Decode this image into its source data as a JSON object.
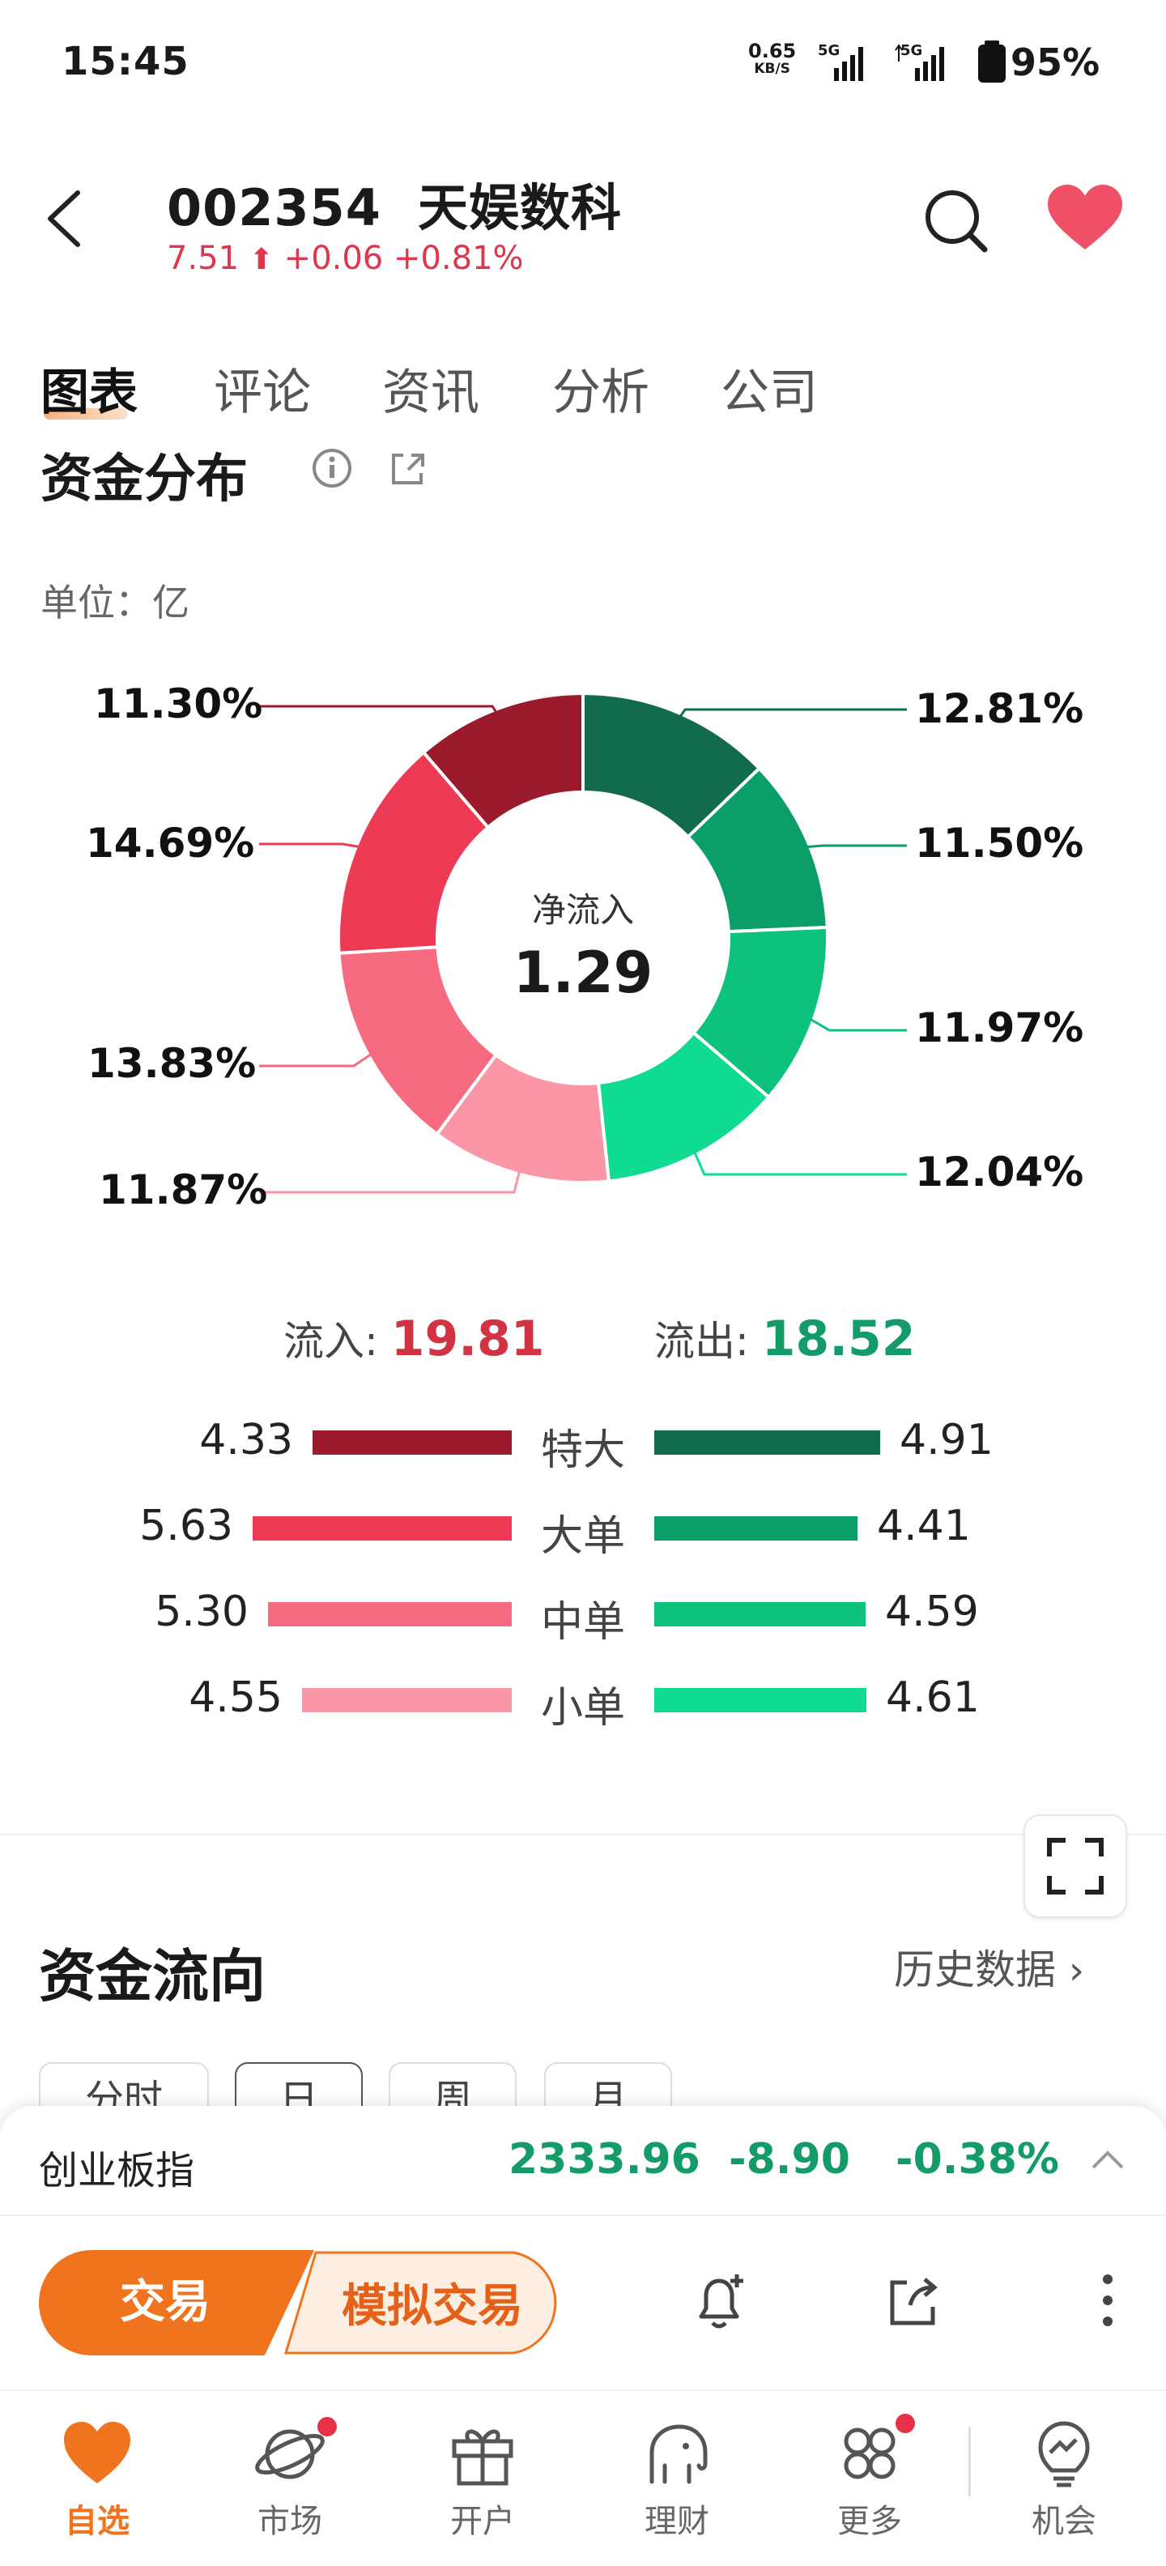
{
  "status_bar": {
    "time": "15:45",
    "net_speed": "0.65",
    "net_unit": "KB/S",
    "sim1": "5G",
    "sim2": "5G",
    "battery": "95%"
  },
  "header": {
    "code": "002354",
    "name": "天娱数科",
    "price": "7.51",
    "change": "+0.06",
    "change_pct": "+0.81%",
    "icons": [
      "back-arrow-icon",
      "search-icon",
      "heart-icon"
    ]
  },
  "tabs": [
    {
      "label": "图表",
      "active": true
    },
    {
      "label": "评论"
    },
    {
      "label": "资讯"
    },
    {
      "label": "分析"
    },
    {
      "label": "公司"
    }
  ],
  "distribution": {
    "title": "资金分布",
    "unit_label": "单位：亿",
    "center_label": "净流入",
    "center_value": "1.29",
    "left_labels": [
      "11.30%",
      "14.69%",
      "13.83%",
      "11.87%"
    ],
    "right_labels": [
      "12.81%",
      "11.50%",
      "11.97%",
      "12.04%"
    ],
    "inflow_label": "流入: ",
    "inflow_value": "19.81",
    "outflow_label": "流出: ",
    "outflow_value": "18.52",
    "rows": [
      {
        "label": "特大",
        "in": "4.33",
        "out": "4.91"
      },
      {
        "label": "大单",
        "in": "5.63",
        "out": "4.41"
      },
      {
        "label": "中单",
        "in": "5.30",
        "out": "4.59"
      },
      {
        "label": "小单",
        "in": "4.55",
        "out": "4.61"
      }
    ],
    "colors": {
      "in": [
        "#9b1b2d",
        "#ee3b55",
        "#f66b80",
        "#fb96a6"
      ],
      "out": [
        "#136b4e",
        "#0b9e69",
        "#0cc27d",
        "#0fdb91"
      ]
    }
  },
  "chart_data": {
    "type": "pie",
    "title": "资金分布",
    "center_label": "净流入",
    "center_value": 1.29,
    "slices": [
      {
        "name": "特大 流出",
        "value": 12.81,
        "color": "#136b4e"
      },
      {
        "name": "大单 流出",
        "value": 11.5,
        "color": "#0b9e69"
      },
      {
        "name": "中单 流出",
        "value": 11.97,
        "color": "#0cc27d"
      },
      {
        "name": "小单 流出",
        "value": 12.04,
        "color": "#0fdb91"
      },
      {
        "name": "小单 流入",
        "value": 11.87,
        "color": "#fb96a6"
      },
      {
        "name": "中单 流入",
        "value": 13.83,
        "color": "#f66b80"
      },
      {
        "name": "大单 流入",
        "value": 14.69,
        "color": "#ee3b55"
      },
      {
        "name": "特大 流入",
        "value": 11.3,
        "color": "#9b1b2d"
      }
    ],
    "bar_categories": [
      "特大",
      "大单",
      "中单",
      "小单"
    ],
    "bar_series": [
      {
        "name": "流入",
        "values": [
          4.33,
          5.63,
          5.3,
          4.55
        ]
      },
      {
        "name": "流出",
        "values": [
          4.91,
          4.41,
          4.59,
          4.61
        ]
      }
    ]
  },
  "flow": {
    "title": "资金流向",
    "history_link": "历史数据",
    "periods": [
      "分时",
      "日",
      "周",
      "月"
    ]
  },
  "index_bar": {
    "name": "创业板指",
    "value": "2333.96",
    "change": "-8.90",
    "change_pct": "-0.38%"
  },
  "actions": {
    "trade": "交易",
    "sim_trade": "模拟交易"
  },
  "bottom_nav": [
    {
      "label": "自选",
      "icon": "heart-icon",
      "active": true
    },
    {
      "label": "市场",
      "icon": "planet-icon",
      "dot": true
    },
    {
      "label": "开户",
      "icon": "gift-icon"
    },
    {
      "label": "理财",
      "icon": "elephant-icon"
    },
    {
      "label": "更多",
      "icon": "grid-icon",
      "dot": true
    },
    {
      "label": "机会",
      "icon": "lightbulb-icon"
    }
  ]
}
